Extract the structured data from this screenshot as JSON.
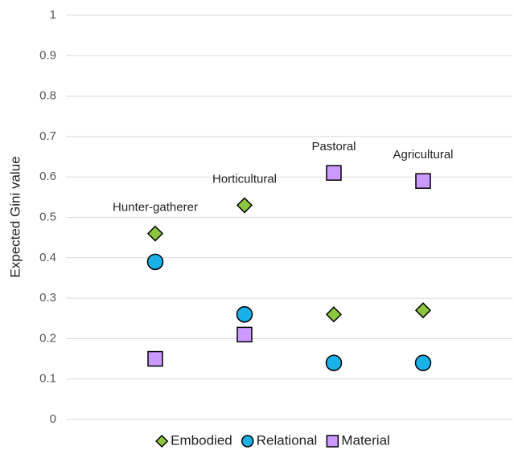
{
  "chart_data": {
    "type": "scatter",
    "y_label": "Expected Gini value",
    "categories": [
      "Hunter-gatherer",
      "Horticultural",
      "Pastoral",
      "Agricultural"
    ],
    "series": [
      {
        "name": "Embodied",
        "color": "#8cc63f",
        "marker": "diamond",
        "values": [
          0.46,
          0.53,
          0.26,
          0.27
        ]
      },
      {
        "name": "Relational",
        "color": "#1ab0e8",
        "marker": "circle",
        "values": [
          0.39,
          0.26,
          0.14,
          0.14
        ]
      },
      {
        "name": "Material",
        "color": "#cc99ff",
        "marker": "square",
        "values": [
          0.15,
          0.21,
          0.61,
          0.59
        ]
      }
    ],
    "ylim": [
      0,
      1
    ],
    "yticks": [
      0,
      0.1,
      0.2,
      0.3,
      0.4,
      0.5,
      0.6,
      0.7,
      0.8,
      0.9,
      1
    ],
    "grid": true,
    "legend": "bottom"
  }
}
